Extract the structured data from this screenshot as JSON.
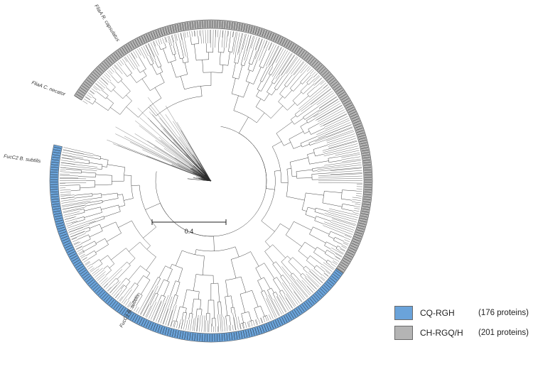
{
  "colors": {
    "cq_rgh": "#6aa3da",
    "ch_rgq_h": "#b4b4b4",
    "branch": "#2b2b2b",
    "ring_outline": "#555555"
  },
  "tree": {
    "scale_bar_label": "0.4",
    "leaf_labels": [
      {
        "id": "fliaa_label",
        "text": "FliaA R. capsulatus"
      },
      {
        "id": "flia_c_label",
        "text": "FliaA C. necator"
      },
      {
        "id": "fucc2_label",
        "text": "FucC2 B. subtilis"
      },
      {
        "id": "fucc1_label",
        "text": "FucC1 B. subtilis"
      }
    ]
  },
  "legend": {
    "items": [
      {
        "label": "CQ-RGH",
        "count": "(176 proteins)",
        "color": "#6aa3da"
      },
      {
        "label": "CH-RGQ/H",
        "count": "(201 proteins)",
        "color": "#b4b4b4"
      }
    ]
  }
}
